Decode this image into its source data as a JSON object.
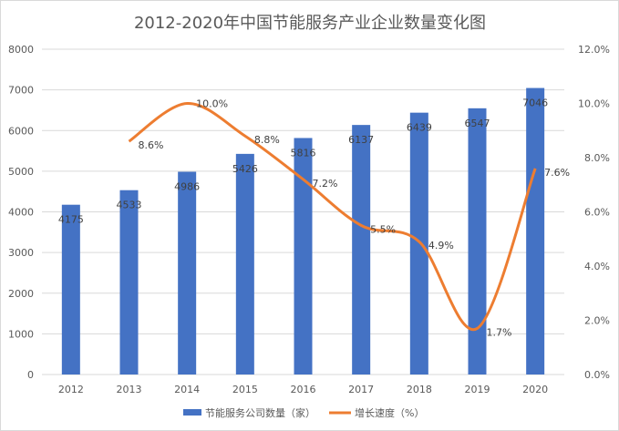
{
  "chart_data": {
    "type": "bar+line",
    "title": "2012-2020年中国节能服务产业企业数量变化图",
    "categories": [
      "2012",
      "2013",
      "2014",
      "2015",
      "2016",
      "2017",
      "2018",
      "2019",
      "2020"
    ],
    "series": [
      {
        "name": "节能服务公司数量（家）",
        "type": "bar",
        "axis": "left",
        "color": "#4472c4",
        "values": [
          4175,
          4533,
          4986,
          5426,
          5816,
          6137,
          6439,
          6547,
          7046
        ],
        "labels": [
          "4175",
          "4533",
          "4986",
          "5426",
          "5816",
          "6137",
          "6439",
          "6547",
          "7046"
        ]
      },
      {
        "name": "增长速度（%）",
        "type": "line",
        "smooth": true,
        "axis": "right",
        "color": "#ed7d31",
        "values": [
          null,
          8.6,
          10.0,
          8.8,
          7.2,
          5.5,
          4.9,
          1.7,
          7.6
        ],
        "labels": [
          "",
          "8.6%",
          "10.0%",
          "8.8%",
          "7.2%",
          "5.5%",
          "4.9%",
          "1.7%",
          "7.6%"
        ]
      }
    ],
    "y_left": {
      "range": [
        0,
        8000
      ],
      "ticks": [
        "0",
        "1000",
        "2000",
        "3000",
        "4000",
        "5000",
        "6000",
        "7000",
        "8000"
      ]
    },
    "y_right": {
      "range": [
        0,
        12
      ],
      "ticks": [
        "0.0%",
        "2.0%",
        "4.0%",
        "6.0%",
        "8.0%",
        "10.0%",
        "12.0%"
      ]
    },
    "grid": true,
    "legend": "bottom"
  }
}
